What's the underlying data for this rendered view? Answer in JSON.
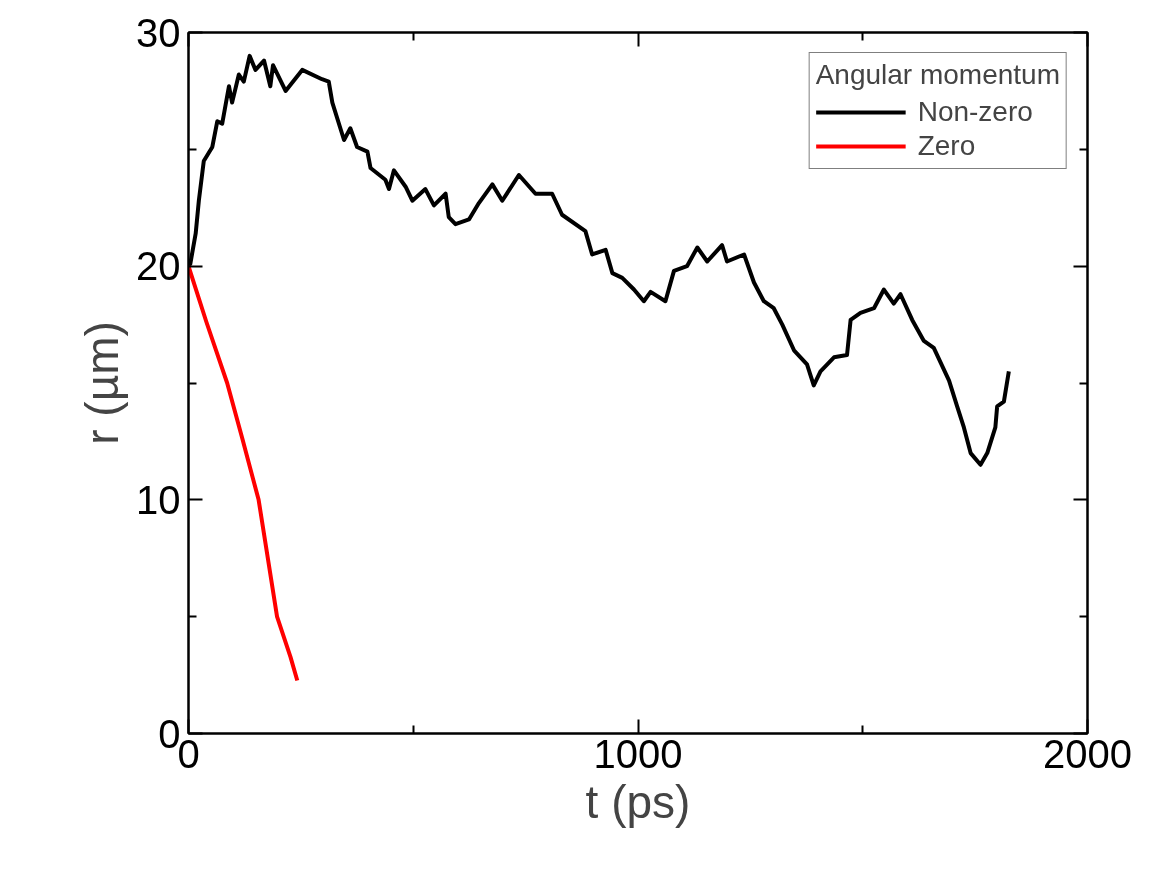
{
  "chart_data": {
    "type": "line",
    "xlabel": "t (ps)",
    "ylabel": "r (µm)",
    "legend_title": "Angular momentum",
    "legend": "top right",
    "grid": false,
    "xlim": [
      0,
      2000
    ],
    "ylim": [
      0,
      30
    ],
    "xticks": [
      0,
      {
        "value": 500,
        "label": null
      },
      1000,
      {
        "value": 1500,
        "label": null
      },
      2000
    ],
    "yticks": [
      0,
      {
        "value": 5,
        "label": null
      },
      10,
      {
        "value": 15,
        "label": null
      },
      20,
      {
        "value": 25,
        "label": null
      },
      30
    ],
    "series": [
      {
        "name": "Non-zero",
        "color": "#000000",
        "x": [
          0,
          4,
          16,
          23,
          34,
          53,
          64,
          75,
          90,
          97,
          112,
          123,
          136,
          149,
          168,
          182,
          188,
          216,
          253,
          297,
          312,
          320,
          346,
          360,
          375,
          398,
          405,
          438,
          446,
          457,
          483,
          498,
          527,
          546,
          572,
          579,
          594,
          624,
          646,
          676,
          698,
          735,
          772,
          809,
          831,
          883,
          898,
          928,
          943,
          965,
          991,
          1013,
          1028,
          1061,
          1080,
          1109,
          1132,
          1154,
          1187,
          1198,
          1236,
          1258,
          1280,
          1302,
          1321,
          1347,
          1376,
          1391,
          1406,
          1436,
          1465,
          1473,
          1495,
          1525,
          1547,
          1569,
          1584,
          1610,
          1636,
          1658,
          1692,
          1710,
          1725,
          1740,
          1762,
          1777,
          1795,
          1799,
          1814,
          1825
        ],
        "values": [
          20,
          20.1,
          21.4,
          22.8,
          24.5,
          25.1,
          26.2,
          26.1,
          27.7,
          27.0,
          28.2,
          27.9,
          29.0,
          28.4,
          28.8,
          27.7,
          28.6,
          27.5,
          28.4,
          28.0,
          27.9,
          27.0,
          25.4,
          25.9,
          25.1,
          24.9,
          24.2,
          23.7,
          23.3,
          24.1,
          23.4,
          22.8,
          23.3,
          22.6,
          23.1,
          22.1,
          21.8,
          22.0,
          22.7,
          23.5,
          22.8,
          23.9,
          23.1,
          23.1,
          22.2,
          21.5,
          20.5,
          20.7,
          19.7,
          19.5,
          19.0,
          18.5,
          18.9,
          18.5,
          19.8,
          20.0,
          20.8,
          20.2,
          20.9,
          20.2,
          20.5,
          19.3,
          18.5,
          18.2,
          17.5,
          16.4,
          15.8,
          14.9,
          15.5,
          16.1,
          16.2,
          17.7,
          18.0,
          18.2,
          19.0,
          18.4,
          18.8,
          17.7,
          16.8,
          16.5,
          15.1,
          14.0,
          13.1,
          12.0,
          11.5,
          12.0,
          13.1,
          14.0,
          14.2,
          15.5
        ]
      },
      {
        "name": "Zero",
        "color": "#ff0000",
        "x": [
          0,
          40,
          86,
          120,
          156,
          197,
          227,
          242
        ],
        "values": [
          20,
          17.6,
          15,
          12.6,
          10,
          5,
          3.27,
          2.27
        ]
      }
    ]
  }
}
